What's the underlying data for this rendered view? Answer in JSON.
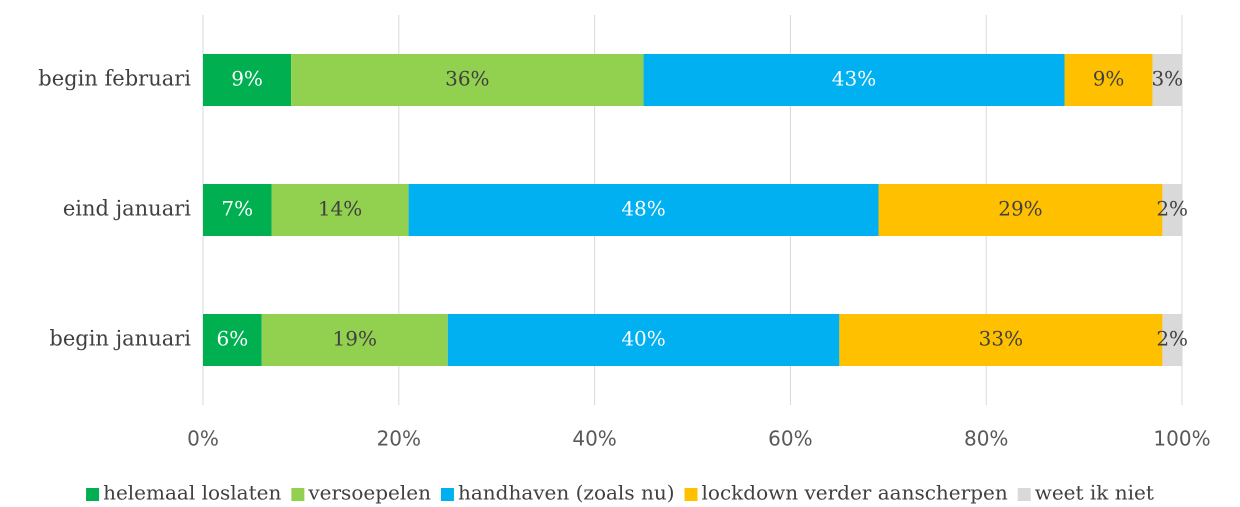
{
  "chart_data": {
    "type": "stacked-bar-horizontal",
    "categories": [
      "begin februari",
      "eind januari",
      "begin januari"
    ],
    "series": [
      {
        "name": "helemaal loslaten",
        "color": "#00b050",
        "label_color": "#ffffff",
        "values": [
          9,
          7,
          6
        ],
        "value_labels": [
          "9%",
          "7%",
          "6%"
        ]
      },
      {
        "name": "versoepelen",
        "color": "#92d050",
        "label_color": "#404040",
        "values": [
          36,
          14,
          19
        ],
        "value_labels": [
          "36%",
          "14%",
          "19%"
        ]
      },
      {
        "name": "handhaven (zoals nu)",
        "color": "#00b0f0",
        "label_color": "#ffffff",
        "values": [
          43,
          48,
          40
        ],
        "value_labels": [
          "43%",
          "48%",
          "40%"
        ]
      },
      {
        "name": "lockdown verder aanscherpen",
        "color": "#ffc000",
        "label_color": "#404040",
        "values": [
          9,
          29,
          33
        ],
        "value_labels": [
          "9%",
          "29%",
          "33%"
        ]
      },
      {
        "name": "weet ik niet",
        "color": "#d9d9d9",
        "label_color": "#404040",
        "values": [
          3,
          2,
          2
        ],
        "value_labels": [
          "3%",
          "2%",
          "2%"
        ]
      }
    ],
    "xlim": [
      0,
      100
    ],
    "xticks": [
      {
        "value": 0,
        "label": "0%"
      },
      {
        "value": 20,
        "label": "20%"
      },
      {
        "value": 40,
        "label": "40%"
      },
      {
        "value": 60,
        "label": "60%"
      },
      {
        "value": 80,
        "label": "80%"
      },
      {
        "value": 100,
        "label": "100%"
      }
    ],
    "grid": true,
    "legend": "bottom"
  }
}
